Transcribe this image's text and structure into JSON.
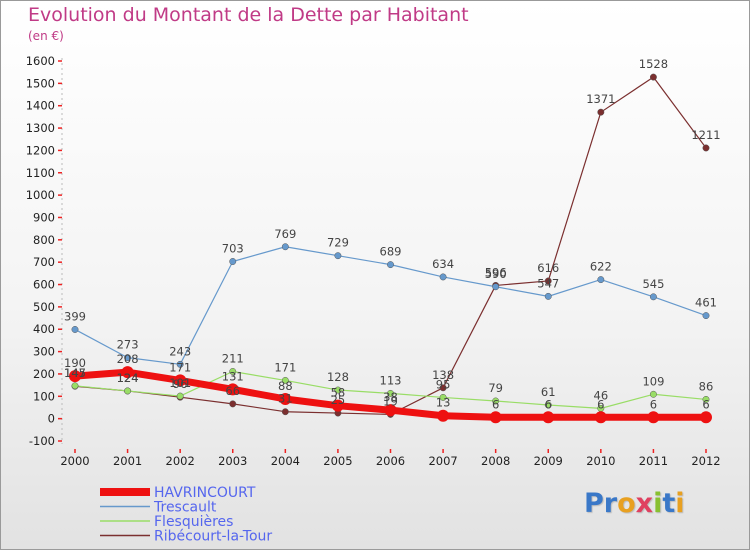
{
  "chart_data": {
    "type": "line",
    "title": "Evolution du Montant de la Dette par Habitant",
    "subtitle": "(en €)",
    "x": [
      "2000",
      "2001",
      "2002",
      "2003",
      "2004",
      "2005",
      "2006",
      "2007",
      "2008",
      "2009",
      "2010",
      "2011",
      "2012"
    ],
    "yticks": [
      "-100",
      "0",
      "100",
      "200",
      "300",
      "400",
      "500",
      "600",
      "700",
      "800",
      "900",
      "1000",
      "1100",
      "1200",
      "1300",
      "1400",
      "1500",
      "1600"
    ],
    "ylim": [
      -100,
      1600
    ],
    "series": [
      {
        "name": "Ribécourt-la-Tour",
        "color": "#7b2f2f",
        "width": 1.2,
        "values": [
          145,
          124,
          96,
          66,
          31,
          25,
          19,
          138,
          596,
          616,
          1371,
          1528,
          1211
        ],
        "labels": [
          "145",
          "124",
          "96",
          "66",
          "31",
          "25",
          "19",
          "138",
          "596",
          "616",
          "1371",
          "1528",
          "1211"
        ]
      },
      {
        "name": "Flesquières",
        "color": "#99dd66",
        "width": 1.2,
        "values": [
          147,
          124,
          101,
          211,
          171,
          128,
          113,
          95,
          79,
          61,
          46,
          109,
          86
        ],
        "labels": [
          "147",
          "124",
          "101",
          "211",
          "171",
          "128",
          "113",
          "95",
          "79",
          "61",
          "46",
          "109",
          "86"
        ]
      },
      {
        "name": "Trescault",
        "color": "#6699cc",
        "width": 1.2,
        "values": [
          399,
          273,
          243,
          703,
          769,
          729,
          689,
          634,
          590,
          547,
          622,
          545,
          461
        ],
        "labels": [
          "399",
          "273",
          "243",
          "703",
          "769",
          "729",
          "689",
          "634",
          "590",
          "547",
          "622",
          "545",
          "461"
        ]
      },
      {
        "name": "HAVRINCOURT",
        "color": "#ee1111",
        "width": 7,
        "values": [
          190,
          208,
          171,
          131,
          88,
          58,
          38,
          13,
          6,
          6,
          6,
          6,
          6
        ],
        "labels": [
          "190",
          "208",
          "171",
          "131",
          "88",
          "58",
          "38",
          "13",
          "6",
          "6",
          "6",
          "6",
          "6"
        ]
      }
    ],
    "legend": [
      "HAVRINCOURT",
      "Trescault",
      "Flesquières",
      "Ribécourt-la-Tour"
    ]
  },
  "logo_text": "Proxiti"
}
